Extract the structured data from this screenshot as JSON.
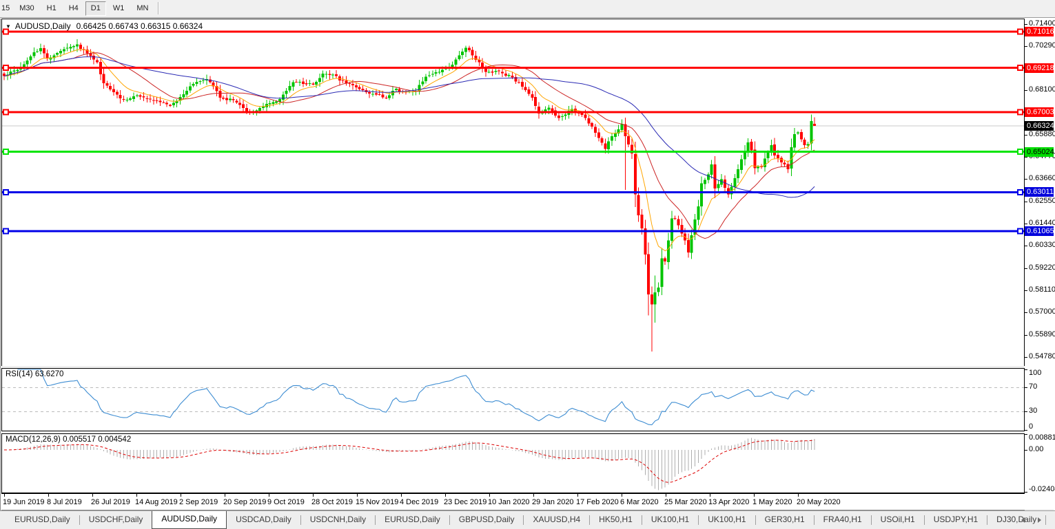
{
  "toolbar": {
    "timeframes": [
      {
        "label": "15",
        "active": false
      },
      {
        "label": "M30",
        "active": false
      },
      {
        "label": "H1",
        "active": false
      },
      {
        "label": "H4",
        "active": false
      },
      {
        "label": "D1",
        "active": true
      },
      {
        "label": "W1",
        "active": false
      },
      {
        "label": "MN",
        "active": false
      }
    ]
  },
  "chart": {
    "title": "AUDUSD,Daily",
    "ohlc": "0.66425 0.66743 0.66315 0.66324"
  },
  "price_axis": {
    "ticks": [
      "0.71400",
      "0.70290",
      "0.68100",
      "0.65880",
      "0.64770",
      "0.63660",
      "0.62550",
      "0.61440",
      "0.60330",
      "0.59220",
      "0.58110",
      "0.57000",
      "0.55890",
      "0.54780"
    ],
    "badges": [
      {
        "text": "0.71016",
        "price": 0.71016,
        "bg": "#FF0000",
        "fg": "#FFFFFF"
      },
      {
        "text": "0.69218",
        "price": 0.69218,
        "bg": "#FF0000",
        "fg": "#FFFFFF"
      },
      {
        "text": "0.67003",
        "price": 0.67003,
        "bg": "#FF0000",
        "fg": "#FFFFFF"
      },
      {
        "text": "0.66324",
        "price": 0.66324,
        "bg": "#000000",
        "fg": "#FFFFFF"
      },
      {
        "text": "0.65024",
        "price": 0.65024,
        "bg": "#00DC00",
        "fg": "#000000"
      },
      {
        "text": "0.63011",
        "price": 0.63011,
        "bg": "#0000DC",
        "fg": "#FFFFFF"
      },
      {
        "text": "0.61065",
        "price": 0.61065,
        "bg": "#0000DC",
        "fg": "#FFFFFF"
      }
    ]
  },
  "rsi_panel": {
    "label": "RSI(14) 63.6270",
    "ticks": [
      {
        "text": "100",
        "value": 100
      },
      {
        "text": "70",
        "value": 70
      },
      {
        "text": "30",
        "value": 30
      },
      {
        "text": "0",
        "value": 0
      }
    ]
  },
  "macd_panel": {
    "label": "MACD(12,26,9) 0.005517 0.004542",
    "ticks": [
      {
        "text": "0.008815",
        "value": 0.008815
      },
      {
        "text": "0.00",
        "value": 0
      },
      {
        "text": "-0.02408",
        "value": -0.02408
      }
    ]
  },
  "date_axis": [
    "19 Jun 2019",
    "8 Jul 2019",
    "26 Jul 2019",
    "14 Aug 2019",
    "2 Sep 2019",
    "20 Sep 2019",
    "9 Oct 2019",
    "28 Oct 2019",
    "15 Nov 2019",
    "4 Dec 2019",
    "23 Dec 2019",
    "10 Jan 2020",
    "29 Jan 2020",
    "17 Feb 2020",
    "6 Mar 2020",
    "25 Mar 2020",
    "13 Apr 2020",
    "1 May 2020",
    "20 May 2020"
  ],
  "tabs": [
    {
      "label": "EURUSD,Daily",
      "active": false
    },
    {
      "label": "USDCHF,Daily",
      "active": false
    },
    {
      "label": "AUDUSD,Daily",
      "active": true
    },
    {
      "label": "USDCAD,Daily",
      "active": false
    },
    {
      "label": "USDCNH,Daily",
      "active": false
    },
    {
      "label": "EURUSD,Daily",
      "active": false
    },
    {
      "label": "GBPUSD,Daily",
      "active": false
    },
    {
      "label": "XAUUSD,H4",
      "active": false
    },
    {
      "label": "HK50,H1",
      "active": false
    },
    {
      "label": "UK100,H1",
      "active": false
    },
    {
      "label": "UK100,H1",
      "active": false
    },
    {
      "label": "GER30,H1",
      "active": false
    },
    {
      "label": "FRA40,H1",
      "active": false
    },
    {
      "label": "USOil,H1",
      "active": false
    },
    {
      "label": "USDJPY,H1",
      "active": false
    },
    {
      "label": "DJ30,Daily",
      "active": false
    }
  ],
  "chart_data": {
    "type": "candlestick",
    "symbol": "AUDUSD",
    "timeframe": "Daily",
    "bar_count": 245,
    "last_ohlc": {
      "open": 0.66425,
      "high": 0.66743,
      "low": 0.66315,
      "close": 0.66324
    },
    "y_range": [
      0.5478,
      0.714
    ],
    "price_anchors": [
      [
        0,
        0.688
      ],
      [
        3,
        0.6908
      ],
      [
        5,
        0.6925
      ],
      [
        9,
        0.7
      ],
      [
        11,
        0.702
      ],
      [
        13,
        0.6968
      ],
      [
        16,
        0.6995
      ],
      [
        18,
        0.7015
      ],
      [
        22,
        0.7038
      ],
      [
        24,
        0.701
      ],
      [
        26,
        0.698
      ],
      [
        28,
        0.695
      ],
      [
        30,
        0.6845
      ],
      [
        33,
        0.68
      ],
      [
        36,
        0.6762
      ],
      [
        40,
        0.6785
      ],
      [
        43,
        0.6768
      ],
      [
        46,
        0.6758
      ],
      [
        50,
        0.6732
      ],
      [
        54,
        0.679
      ],
      [
        58,
        0.6852
      ],
      [
        61,
        0.6866
      ],
      [
        63,
        0.683
      ],
      [
        65,
        0.6772
      ],
      [
        69,
        0.676
      ],
      [
        73,
        0.6702
      ],
      [
        75,
        0.6705
      ],
      [
        79,
        0.6742
      ],
      [
        83,
        0.6765
      ],
      [
        87,
        0.685
      ],
      [
        90,
        0.6842
      ],
      [
        93,
        0.6838
      ],
      [
        96,
        0.6892
      ],
      [
        99,
        0.6888
      ],
      [
        103,
        0.6842
      ],
      [
        107,
        0.6815
      ],
      [
        111,
        0.6792
      ],
      [
        115,
        0.6772
      ],
      [
        118,
        0.6818
      ],
      [
        120,
        0.68
      ],
      [
        124,
        0.6806
      ],
      [
        127,
        0.6878
      ],
      [
        131,
        0.6902
      ],
      [
        135,
        0.6938
      ],
      [
        139,
        0.7021
      ],
      [
        141,
        0.6984
      ],
      [
        145,
        0.6902
      ],
      [
        149,
        0.6904
      ],
      [
        153,
        0.6874
      ],
      [
        156,
        0.6828
      ],
      [
        159,
        0.6772
      ],
      [
        161,
        0.6694
      ],
      [
        164,
        0.6722
      ],
      [
        167,
        0.6672
      ],
      [
        171,
        0.6716
      ],
      [
        175,
        0.6672
      ],
      [
        177,
        0.6628
      ],
      [
        181,
        0.6516
      ],
      [
        183,
        0.658
      ],
      [
        186,
        0.6642
      ],
      [
        187,
        0.658
      ],
      [
        189,
        0.6495
      ],
      [
        190,
        0.629
      ],
      [
        191,
        0.6185
      ],
      [
        192,
        0.612
      ],
      [
        193,
        0.599
      ],
      [
        194,
        0.579
      ],
      [
        195,
        0.574
      ],
      [
        196,
        0.58
      ],
      [
        197,
        0.5825
      ],
      [
        198,
        0.597
      ],
      [
        199,
        0.5955
      ],
      [
        200,
        0.606
      ],
      [
        201,
        0.617
      ],
      [
        202,
        0.617
      ],
      [
        203,
        0.6135
      ],
      [
        204,
        0.6095
      ],
      [
        205,
        0.606
      ],
      [
        206,
        0.6
      ],
      [
        207,
        0.6085
      ],
      [
        208,
        0.6165
      ],
      [
        209,
        0.623
      ],
      [
        210,
        0.6345
      ],
      [
        212,
        0.639
      ],
      [
        213,
        0.644
      ],
      [
        214,
        0.632
      ],
      [
        216,
        0.6365
      ],
      [
        218,
        0.629
      ],
      [
        220,
        0.637
      ],
      [
        222,
        0.6465
      ],
      [
        224,
        0.655
      ],
      [
        225,
        0.651
      ],
      [
        226,
        0.642
      ],
      [
        228,
        0.6425
      ],
      [
        231,
        0.6535
      ],
      [
        232,
        0.6485
      ],
      [
        234,
        0.645
      ],
      [
        236,
        0.6415
      ],
      [
        237,
        0.6525
      ],
      [
        238,
        0.659
      ],
      [
        239,
        0.66
      ],
      [
        240,
        0.6565
      ],
      [
        241,
        0.6535
      ],
      [
        242,
        0.654
      ],
      [
        243,
        0.6655
      ],
      [
        244,
        0.66324
      ]
    ],
    "extreme_wicks": [
      [
        22,
        0.7065,
        0.7
      ],
      [
        139,
        0.7032,
        0.6975
      ],
      [
        187,
        0.6632,
        0.6313
      ],
      [
        194,
        0.6,
        0.5685
      ],
      [
        195,
        0.583,
        0.5506
      ],
      [
        196,
        0.5885,
        0.565
      ],
      [
        243,
        0.6672,
        0.6535
      ]
    ],
    "hlines": [
      {
        "price": 0.71016,
        "color": "#FF0000",
        "width": 3
      },
      {
        "price": 0.69218,
        "color": "#FF0000",
        "width": 3
      },
      {
        "price": 0.67003,
        "color": "#FF0000",
        "width": 3
      },
      {
        "price": 0.65024,
        "color": "#00E400",
        "width": 3
      },
      {
        "price": 0.63011,
        "color": "#0000E8",
        "width": 3
      },
      {
        "price": 0.61065,
        "color": "#0000E8",
        "width": 3
      }
    ],
    "current_price": {
      "price": 0.66324,
      "line_color": "#C8C8C8"
    },
    "candle_colors": {
      "bull": "#00C400",
      "bear": "#FF0000"
    },
    "moving_averages": [
      {
        "type": "ema",
        "period": 10,
        "color": "#FFA500"
      },
      {
        "type": "sma",
        "period": 22,
        "color": "#CC2424"
      },
      {
        "type": "sma",
        "period": 50,
        "color": "#2A2AB4"
      }
    ],
    "rsi": {
      "period": 14,
      "last": 63.627,
      "levels": [
        70,
        30
      ],
      "color": "#3C8CD2",
      "range": [
        0,
        100
      ]
    },
    "macd": {
      "fast": 12,
      "slow": 26,
      "signal": 9,
      "last_macd": 0.005517,
      "last_signal": 0.004542,
      "range": [
        -0.02408,
        0.008815
      ],
      "histogram_color": "#ADADAD",
      "signal_color": "#DD0000"
    }
  }
}
